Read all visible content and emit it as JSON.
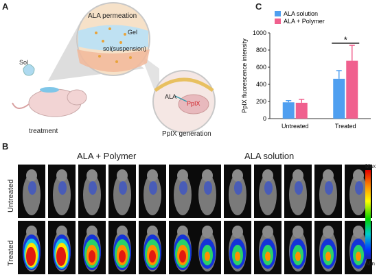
{
  "panels": {
    "A": {
      "letter": "A",
      "permeation_title": "ALA permeation",
      "gel_label": "Gel",
      "sol_suspension_label": "sol(suspension)",
      "sol_label": "Sol",
      "treatment_label": "treatment",
      "ala_label": "ALA",
      "ppix_label": "PpIX",
      "ppix_generation_label": "PpIX generation"
    },
    "B": {
      "letter": "B",
      "group_left": "ALA + Polymer",
      "group_right": "ALA solution",
      "row_untreated": "Untreated",
      "row_treated": "Treated",
      "scale_max": "Max",
      "scale_min": "Min"
    },
    "C": {
      "letter": "C"
    }
  },
  "colors": {
    "ala_solution": "#4f9ff0",
    "ala_polymer": "#f0608e"
  },
  "chart_data": {
    "type": "bar",
    "categories": [
      "Untreated",
      "Treated"
    ],
    "series": [
      {
        "name": "ALA solution",
        "values": [
          190,
          465
        ],
        "errors": [
          20,
          95
        ],
        "color": "#4f9ff0"
      },
      {
        "name": "ALA + Polymer",
        "values": [
          185,
          675
        ],
        "errors": [
          40,
          180
        ],
        "color": "#f0608e"
      }
    ],
    "ylabel": "PpIX fluorescence intensity",
    "xlabel": "",
    "ylim": [
      0,
      1000
    ],
    "yticks": [
      "0",
      "200",
      "400",
      "600",
      "800",
      "1000"
    ],
    "significance": "*",
    "legend_position": "top-left"
  }
}
